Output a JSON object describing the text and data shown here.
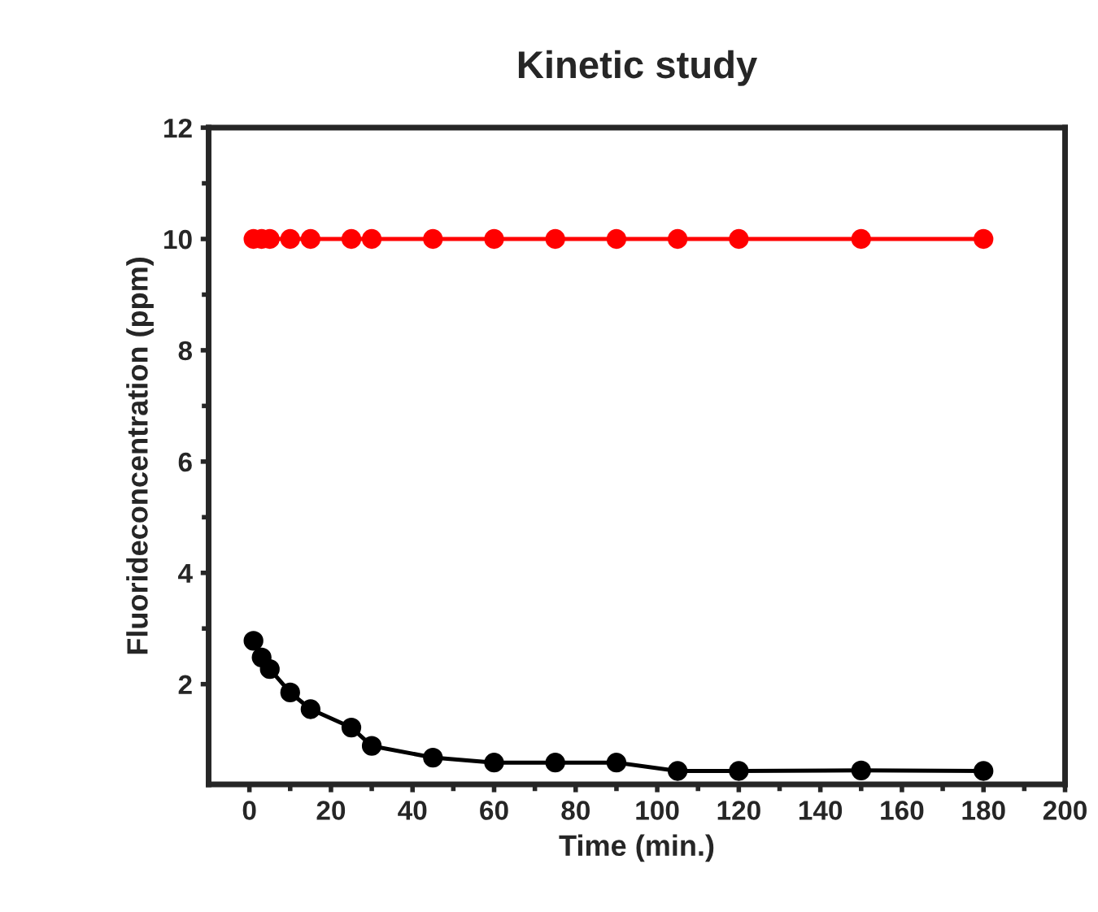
{
  "chart_data": {
    "type": "line",
    "title": "Kinetic study",
    "xlabel": "Time (min.)",
    "ylabel": "Fluorideconcentration (ppm)",
    "x": [
      1,
      3,
      5,
      10,
      15,
      25,
      30,
      45,
      60,
      75,
      90,
      105,
      120,
      150,
      180
    ],
    "series": [
      {
        "color": "#ff0000",
        "values": [
          10,
          10,
          10,
          10,
          10,
          10,
          10,
          10,
          10,
          10,
          10,
          10,
          10,
          10,
          10
        ]
      },
      {
        "color": "#000000",
        "values": [
          2.78,
          2.48,
          2.27,
          1.85,
          1.55,
          1.22,
          0.89,
          0.68,
          0.59,
          0.59,
          0.59,
          0.44,
          0.44,
          0.45,
          0.44
        ]
      }
    ],
    "xlim": [
      -10,
      200
    ],
    "xticks": [
      0,
      20,
      40,
      60,
      80,
      100,
      120,
      140,
      160,
      180,
      200
    ],
    "ylim": [
      0.2,
      12
    ],
    "yticks": [
      2,
      4,
      6,
      8,
      10,
      12
    ],
    "marker": "circle",
    "line_style": "solid",
    "grid": false,
    "legend": false
  }
}
